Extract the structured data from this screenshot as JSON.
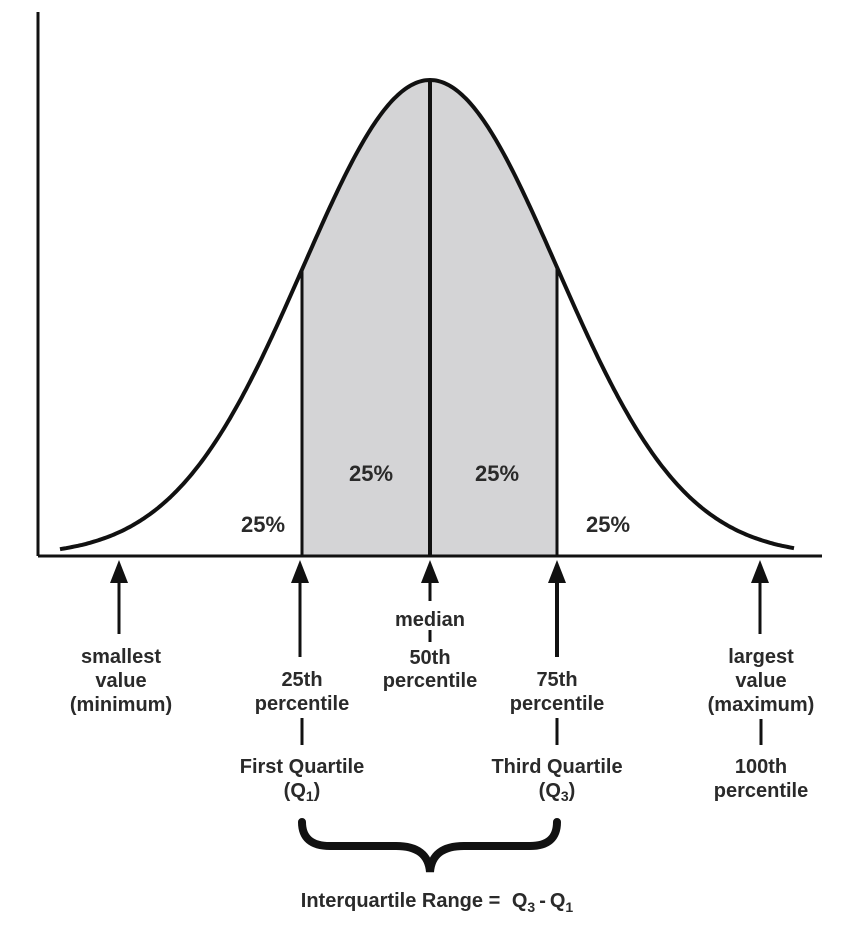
{
  "segments": {
    "left_tail": "25%",
    "q1_to_median": "25%",
    "median_to_q3": "25%",
    "right_tail": "25%"
  },
  "markers": {
    "minimum": {
      "line1": "smallest",
      "line2": "value",
      "line3": "(minimum)"
    },
    "q1": {
      "line1": "25th",
      "line2": "percentile",
      "name": "First Quartile",
      "symbol_open": "(Q",
      "symbol_sub": "1",
      "symbol_close": ")"
    },
    "median": {
      "line1": "median",
      "line2": "50th",
      "line3": "percentile"
    },
    "q3": {
      "line1": "75th",
      "line2": "percentile",
      "name": "Third Quartile",
      "symbol_open": "(Q",
      "symbol_sub": "3",
      "symbol_close": ")"
    },
    "maximum": {
      "line1": "largest",
      "line2": "value",
      "line3": "(maximum)",
      "line4": "100th",
      "line5": "percentile"
    }
  },
  "iqr": {
    "label": "Interquartile Range =",
    "q3": "Q",
    "q3_sub": "3",
    "minus": "-",
    "q1": "Q",
    "q1_sub": "1"
  },
  "colors": {
    "fill_iqr": "#d4d4d6",
    "stroke": "#111111",
    "text": "#2a2a2a"
  }
}
